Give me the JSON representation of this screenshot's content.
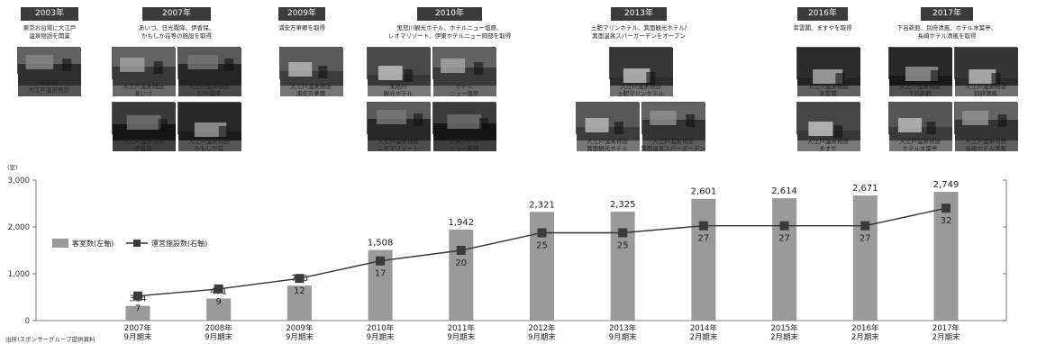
{
  "timeline": [
    {
      "year": "2003年",
      "desc": [
        "東京お台場に大江戸",
        "温泉物語を開業"
      ],
      "photos": [
        {
          "cap": [
            "お台場",
            "大江戸温泉物語"
          ]
        }
      ]
    },
    {
      "year": "2007年",
      "desc": [
        "あいづ、日光霧降、伊香保、",
        "かもしか荘等の施設を取得"
      ],
      "photos": [
        {
          "cap": [
            "大江戸温泉物語",
            "あいづ"
          ]
        },
        {
          "cap": [
            "大江戸温泉物語",
            "日光霧降"
          ]
        },
        {
          "cap": [
            "大江戸温泉物語",
            "伊香保"
          ]
        },
        {
          "cap": [
            "大江戸温泉物語",
            "かもしか荘"
          ]
        }
      ]
    },
    {
      "year": "2009年",
      "desc": [
        "浦安万華郷を取得"
      ],
      "photos": [
        {
          "cap": [
            "大江戸温泉物語",
            "浦安万華郷"
          ]
        }
      ]
    },
    {
      "year": "2010年",
      "desc": [
        "鬼怒川観光ホテル、ホテルニュー塩原、",
        "レオマリゾート、伊東ホテルニュー岡部を取得"
      ],
      "photos": [
        {
          "cap": [
            "鬼怒川",
            "観光ホテル"
          ]
        },
        {
          "cap": [
            "ホテル",
            "ニュー塩原"
          ]
        },
        {
          "cap": [
            "大江戸温泉物語",
            "レオマリゾート"
          ]
        },
        {
          "cap": [
            "伊東ホテル",
            "ニュー岡部"
          ]
        }
      ]
    },
    {
      "year": "2013年",
      "desc": [
        "土肥マリンホテル、箕面観光ホテル/",
        "箕面温泉スパーガーデンをオープン"
      ],
      "photos": [
        {
          "cap": [
            "大江戸温泉物語",
            "土肥マリンホテル"
          ]
        },
        {
          "cap": [
            "大江戸温泉物語",
            "箕面観光ホテル"
          ]
        },
        {
          "cap": [
            "大江戸温泉物語",
            "箕面温泉スパーガーデン"
          ]
        }
      ]
    },
    {
      "year": "2016年",
      "desc": [
        "幸雲閣、ますやを取得"
      ],
      "photos": [
        {
          "cap": [
            "大江戸温泉物語",
            "幸雲閣"
          ]
        },
        {
          "cap": [
            "大江戸温泉物語",
            "ますや"
          ]
        }
      ]
    },
    {
      "year": "2017年",
      "desc": [
        "下呂新館、別府清風、ホテル水葉亭、",
        "長崎ホテル清風を取得"
      ],
      "photos": [
        {
          "cap": [
            "大江戸温泉物語",
            "下呂新館"
          ]
        },
        {
          "cap": [
            "大江戸温泉物語",
            "別府清風"
          ]
        },
        {
          "cap": [
            "大江戸温泉物語",
            "ホテル水葉亭"
          ]
        },
        {
          "cap": [
            "大江戸温泉物語",
            "長崎ホテル清風"
          ]
        }
      ]
    }
  ],
  "chart_data": {
    "type": "bar",
    "unit_label": "(室)",
    "categories": [
      [
        "2007年",
        "9月期末"
      ],
      [
        "2008年",
        "9月期末"
      ],
      [
        "2009年",
        "9月期末"
      ],
      [
        "2010年",
        "9月期末"
      ],
      [
        "2011年",
        "9月期末"
      ],
      [
        "2012年",
        "9月期末"
      ],
      [
        "2013年",
        "9月期末"
      ],
      [
        "2014年",
        "2月期末"
      ],
      [
        "2015年",
        "2月期末"
      ],
      [
        "2016年",
        "2月期末"
      ],
      [
        "2017年",
        "2月期末"
      ]
    ],
    "ylim": [
      0,
      3000
    ],
    "y_ticks": [
      "0",
      "1,000",
      "2,000",
      "3,000"
    ],
    "y2lim": [
      0,
      40
    ],
    "series": [
      {
        "name": "客室数(左軸)",
        "type": "bar",
        "values": [
          314,
          471,
          746,
          1508,
          1942,
          2321,
          2325,
          2601,
          2614,
          2671,
          2749
        ],
        "labels": [
          "314",
          "471",
          "746",
          "1,508",
          "1,942",
          "2,321",
          "2,325",
          "2,601",
          "2,614",
          "2,671",
          "2,749"
        ]
      },
      {
        "name": "運営施設数(右軸)",
        "type": "line",
        "axis": "right",
        "values": [
          7,
          9,
          12,
          17,
          20,
          25,
          25,
          27,
          27,
          27,
          32
        ],
        "labels": [
          "7",
          "9",
          "12",
          "17",
          "20",
          "25",
          "25",
          "27",
          "27",
          "27",
          "32"
        ]
      }
    ],
    "legend_position": "left",
    "colors": {
      "bar": "#9a9a9a",
      "line": "#333333",
      "marker": "#3a3a3a"
    }
  },
  "source_note": "出所)スポンサーグループ提供資料"
}
